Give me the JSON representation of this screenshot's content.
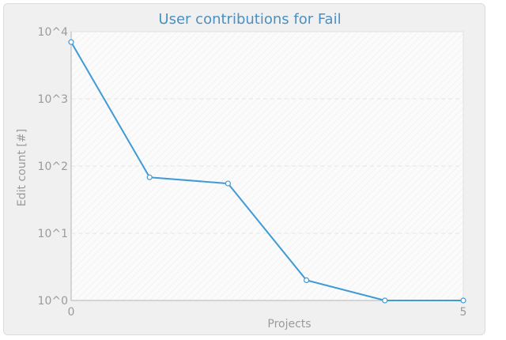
{
  "chart_data": {
    "type": "line",
    "title": "User contributions for Fail",
    "xlabel": "Projects",
    "ylabel": "Edit count [#]",
    "y_scale": "log",
    "xlim": [
      0,
      5
    ],
    "ylim": [
      1,
      10000
    ],
    "x_ticks": [
      "0",
      "5"
    ],
    "y_ticks": [
      "10^0",
      "10^1",
      "10^2",
      "10^3",
      "10^4"
    ],
    "grid": true,
    "series": [
      {
        "color": "#3f9ad6",
        "x": [
          0,
          1,
          2,
          3,
          4,
          5
        ],
        "values": [
          7000,
          68,
          55,
          2,
          1,
          1
        ]
      }
    ]
  }
}
